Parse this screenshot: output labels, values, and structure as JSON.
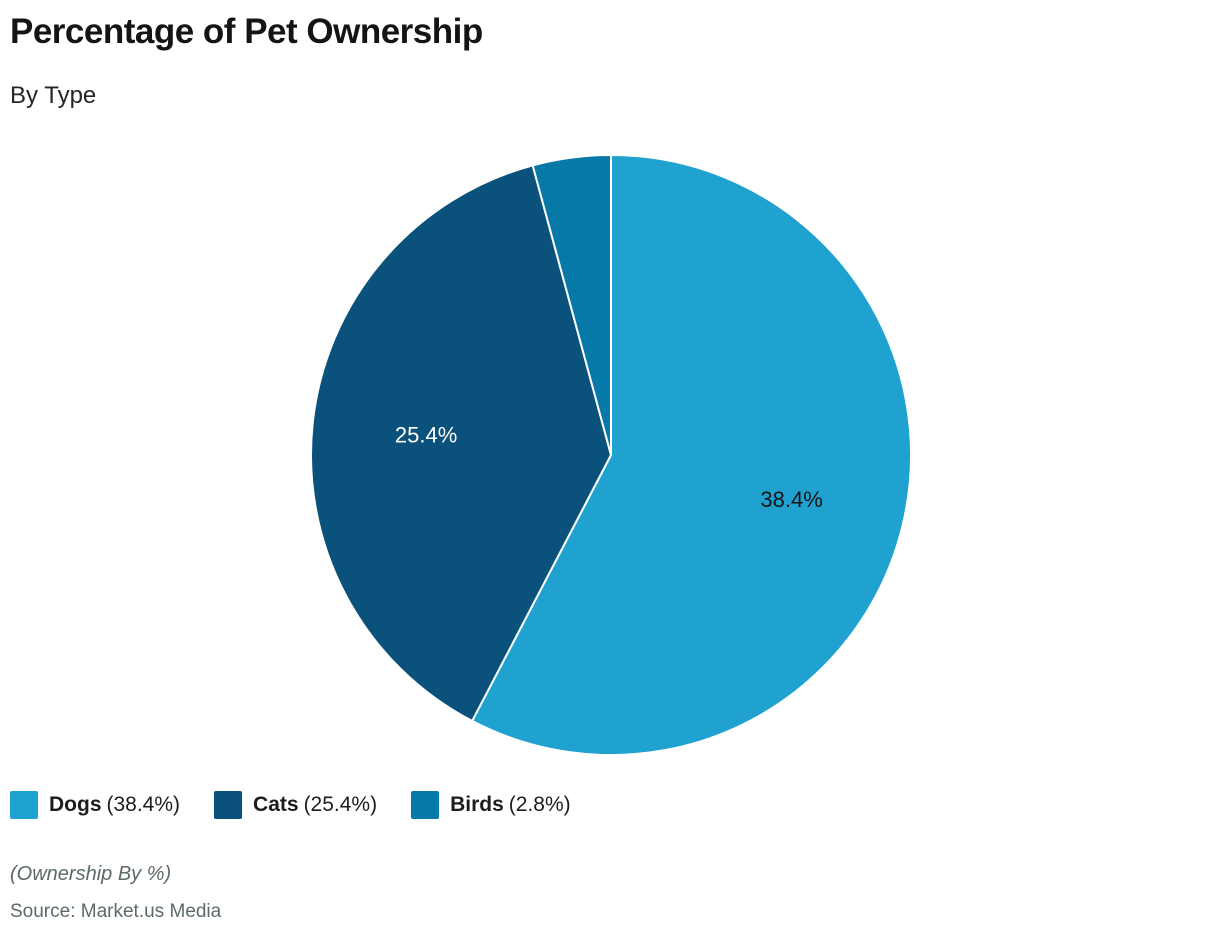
{
  "header": {
    "title": "Percentage of Pet Ownership",
    "subtitle": "By Type"
  },
  "chart_data": {
    "type": "pie",
    "title": "Percentage of Pet Ownership",
    "subtitle": "By Type",
    "start_angle_deg": 0,
    "direction": "clockwise",
    "angles_normalized_to_total": true,
    "slices": [
      {
        "name": "Dogs",
        "value": 38.4,
        "label": "38.4%",
        "color": "#1FA2D0",
        "label_color": "#141414",
        "show_label": true
      },
      {
        "name": "Cats",
        "value": 25.4,
        "label": "25.4%",
        "color": "#0A527C",
        "label_color": "#FFFFFF",
        "show_label": true
      },
      {
        "name": "Birds",
        "value": 2.8,
        "label": "2.8%",
        "color": "#0779A8",
        "label_color": "#FFFFFF",
        "show_label": false
      }
    ]
  },
  "legend": {
    "items": [
      {
        "name": "Dogs",
        "value_text": "(38.4%)"
      },
      {
        "name": "Cats",
        "value_text": "(25.4%)"
      },
      {
        "name": "Birds",
        "value_text": "(2.8%)"
      }
    ]
  },
  "footer": {
    "note": "(Ownership By %)",
    "source": "Source: Market.us Media"
  }
}
